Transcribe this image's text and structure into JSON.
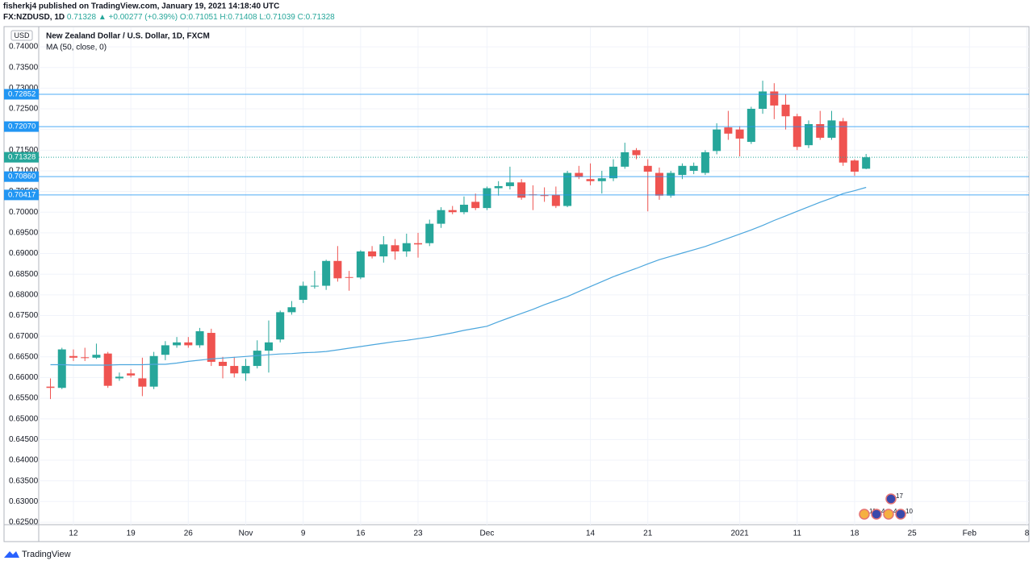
{
  "header": {
    "author_line": "fisherkj4 published on TradingView.com, January 19, 2021 14:18:40 UTC",
    "symbol": "FX:NZDUSD, 1D",
    "last": "0.71328",
    "change": "▲ +0.00277 (+0.39%)",
    "ohlc": "O:0.71051 H:0.71408 L:0.71039 C:0.71328"
  },
  "chart_data": {
    "type": "candlestick",
    "title": "New Zealand Dollar / U.S. Dollar, 1D, FXCM",
    "currency": "USD",
    "up_color": "#26a69a",
    "down_color": "#ef5350",
    "categories": [
      null,
      null,
      "12",
      null,
      null,
      null,
      null,
      "19",
      null,
      null,
      null,
      null,
      "26",
      null,
      null,
      null,
      null,
      "Nov",
      null,
      null,
      null,
      null,
      "9",
      null,
      null,
      null,
      null,
      "16",
      null,
      null,
      null,
      null,
      "23",
      null,
      null,
      null,
      null,
      null,
      "Dec",
      null,
      null,
      null,
      null,
      null,
      null,
      null,
      null,
      "14",
      null,
      null,
      null,
      null,
      "21",
      null,
      null,
      null,
      null,
      null,
      null,
      null,
      "2021",
      null,
      null,
      null,
      null,
      "11",
      null,
      null,
      null,
      null,
      "18",
      null,
      null,
      null,
      null,
      "25",
      null,
      null,
      null,
      null,
      "Feb",
      null,
      null,
      null,
      null,
      "8"
    ],
    "open": [
      0.6578,
      0.6575,
      0.6652,
      0.6649,
      0.6648,
      0.6658,
      0.6598,
      0.661,
      0.6598,
      0.6578,
      0.6655,
      0.6678,
      0.6685,
      0.6678,
      0.6708,
      0.6638,
      0.6628,
      0.661,
      0.6628,
      0.6665,
      0.6692,
      0.6758,
      0.6788,
      0.6821,
      0.6822,
      0.6882,
      0.6843,
      0.6842,
      0.6905,
      0.6893,
      0.692,
      0.6905,
      0.6925,
      0.6925,
      0.6972,
      0.7005,
      0.7,
      0.7025,
      0.701,
      0.7058,
      0.7063,
      0.7072,
      0.7043,
      0.7041,
      0.7042,
      0.7015,
      0.7095,
      0.708,
      0.7075,
      0.7082,
      0.711,
      0.715,
      0.7112,
      0.7095,
      0.704,
      0.709,
      0.71,
      0.7095,
      0.7148,
      0.7205,
      0.72,
      0.717,
      0.725,
      0.7292,
      0.726,
      0.7232,
      0.7162,
      0.7213,
      0.718,
      0.722,
      0.7125,
      0.71051,
      null,
      null,
      null,
      null,
      null,
      null,
      null,
      null,
      null,
      null,
      null,
      null,
      null,
      null
    ],
    "high": [
      0.6598,
      0.6672,
      0.6668,
      0.6672,
      0.6682,
      0.6662,
      0.6612,
      0.662,
      0.6648,
      0.6662,
      0.6688,
      0.6698,
      0.6698,
      0.672,
      0.6718,
      0.665,
      0.665,
      0.6645,
      0.669,
      0.6738,
      0.6762,
      0.6785,
      0.6832,
      0.6858,
      0.6885,
      0.6918,
      0.6858,
      0.6908,
      0.6918,
      0.6942,
      0.6935,
      0.6948,
      0.695,
      0.6982,
      0.7012,
      0.7015,
      0.7038,
      0.7045,
      0.7062,
      0.7075,
      0.711,
      0.708,
      0.7065,
      0.706,
      0.7062,
      0.71,
      0.7112,
      0.7118,
      0.71,
      0.7128,
      0.7168,
      0.7155,
      0.7128,
      0.7108,
      0.71,
      0.7118,
      0.712,
      0.715,
      0.7215,
      0.7245,
      0.7208,
      0.7255,
      0.7318,
      0.7312,
      0.7285,
      0.7238,
      0.7222,
      0.7245,
      0.7245,
      0.7228,
      0.7128,
      0.71408,
      null,
      null,
      null,
      null,
      null,
      null,
      null,
      null,
      null,
      null,
      null,
      null,
      null,
      null
    ],
    "low": [
      0.6548,
      0.6572,
      0.664,
      0.664,
      0.6645,
      0.6575,
      0.6592,
      0.66,
      0.6555,
      0.6572,
      0.6642,
      0.6672,
      0.6672,
      0.6672,
      0.6628,
      0.6598,
      0.66,
      0.6592,
      0.6622,
      0.6612,
      0.6685,
      0.6752,
      0.678,
      0.6815,
      0.6812,
      0.6832,
      0.681,
      0.6838,
      0.6888,
      0.6878,
      0.6885,
      0.6892,
      0.689,
      0.6918,
      0.6962,
      0.6995,
      0.6995,
      0.7005,
      0.7005,
      0.704,
      0.7055,
      0.703,
      0.7005,
      0.7025,
      0.701,
      0.7012,
      0.708,
      0.7065,
      0.7045,
      0.7075,
      0.7105,
      0.7128,
      0.7002,
      0.703,
      0.7035,
      0.708,
      0.7092,
      0.709,
      0.714,
      0.7175,
      0.7135,
      0.7165,
      0.7238,
      0.7225,
      0.72,
      0.715,
      0.7155,
      0.7175,
      0.7175,
      0.7112,
      0.7088,
      0.71039,
      null,
      null,
      null,
      null,
      null,
      null,
      null,
      null,
      null,
      null,
      null,
      null,
      null,
      null
    ],
    "close": [
      0.6575,
      0.6668,
      0.6648,
      0.6647,
      0.6655,
      0.658,
      0.6602,
      0.6605,
      0.6578,
      0.6652,
      0.6678,
      0.6685,
      0.6678,
      0.6712,
      0.6638,
      0.6628,
      0.661,
      0.6628,
      0.6665,
      0.6685,
      0.6758,
      0.677,
      0.6822,
      0.6822,
      0.6882,
      0.684,
      0.6842,
      0.6905,
      0.6893,
      0.6922,
      0.6905,
      0.6925,
      0.6922,
      0.6972,
      0.7005,
      0.7,
      0.7018,
      0.701,
      0.7058,
      0.7063,
      0.7072,
      0.7035,
      0.7042,
      0.704,
      0.7015,
      0.7095,
      0.7085,
      0.7075,
      0.7082,
      0.711,
      0.7145,
      0.7138,
      0.7098,
      0.704,
      0.7095,
      0.7112,
      0.7112,
      0.7145,
      0.72,
      0.719,
      0.7178,
      0.725,
      0.7292,
      0.7258,
      0.7232,
      0.7158,
      0.7213,
      0.718,
      0.7222,
      0.712,
      0.7098,
      0.71328,
      null,
      null,
      null,
      null,
      null,
      null,
      null,
      null,
      null,
      null,
      null,
      null,
      null,
      null
    ],
    "ma": {
      "name": "MA (50, close, 0)",
      "color": "#4ba6dd",
      "values": [
        0.6631,
        0.6631,
        0.663,
        0.663,
        0.663,
        0.663,
        0.6631,
        0.6631,
        0.6631,
        0.6632,
        0.6632,
        0.6635,
        0.6639,
        0.6642,
        0.6645,
        0.6647,
        0.6649,
        0.6651,
        0.6653,
        0.6655,
        0.6657,
        0.6658,
        0.666,
        0.6661,
        0.6663,
        0.6667,
        0.6671,
        0.6675,
        0.6679,
        0.6683,
        0.6687,
        0.669,
        0.6694,
        0.6698,
        0.6703,
        0.6708,
        0.6714,
        0.6719,
        0.6724,
        0.6735,
        0.6745,
        0.6755,
        0.6765,
        0.6776,
        0.6786,
        0.6796,
        0.6808,
        0.682,
        0.6832,
        0.6844,
        0.6854,
        0.6864,
        0.6875,
        0.6885,
        0.6893,
        0.6901,
        0.6909,
        0.6917,
        0.6927,
        0.6937,
        0.6947,
        0.6957,
        0.6968,
        0.698,
        0.6991,
        0.7002,
        0.7013,
        0.7024,
        0.7034,
        0.7045,
        0.7052,
        0.706,
        null,
        null,
        null,
        null,
        null,
        null,
        null,
        null,
        null,
        null,
        null,
        null,
        null,
        null
      ]
    },
    "levels": [
      {
        "value": 0.72852,
        "label": "0.72852"
      },
      {
        "value": 0.7207,
        "label": "0.72070"
      },
      {
        "value": 0.7086,
        "label": "0.70860"
      },
      {
        "value": 0.70417,
        "label": "0.70417"
      }
    ],
    "level_color": "#2196f3",
    "last_price": {
      "value": 0.71328,
      "label": "0.71328"
    },
    "ylim": [
      0.6246,
      0.7445
    ],
    "yticks": [
      {
        "value": 0.74,
        "label": "0.74000"
      },
      {
        "value": 0.735,
        "label": "0.73500"
      },
      {
        "value": 0.73,
        "label": "0.73000"
      },
      {
        "value": 0.725,
        "label": "0.72500"
      },
      {
        "value": 0.72,
        "label": "0.72000"
      },
      {
        "value": 0.715,
        "label": "0.71500"
      },
      {
        "value": 0.71,
        "label": "0.71000"
      },
      {
        "value": 0.705,
        "label": "0.70500"
      },
      {
        "value": 0.7,
        "label": "0.70000"
      },
      {
        "value": 0.695,
        "label": "0.69500"
      },
      {
        "value": 0.69,
        "label": "0.69000"
      },
      {
        "value": 0.685,
        "label": "0.68500"
      },
      {
        "value": 0.68,
        "label": "0.68000"
      },
      {
        "value": 0.675,
        "label": "0.67500"
      },
      {
        "value": 0.67,
        "label": "0.67000"
      },
      {
        "value": 0.665,
        "label": "0.66500"
      },
      {
        "value": 0.66,
        "label": "0.66000"
      },
      {
        "value": 0.655,
        "label": "0.65500"
      },
      {
        "value": 0.65,
        "label": "0.65000"
      },
      {
        "value": 0.645,
        "label": "0.64500"
      },
      {
        "value": 0.64,
        "label": "0.64000"
      },
      {
        "value": 0.635,
        "label": "0.63500"
      },
      {
        "value": 0.63,
        "label": "0.63000"
      },
      {
        "value": 0.625,
        "label": "0.62500"
      }
    ],
    "grid": true,
    "event_labels": [
      "17",
      "11",
      "4",
      "4",
      "10"
    ]
  },
  "footer": {
    "brand": "TradingView"
  }
}
